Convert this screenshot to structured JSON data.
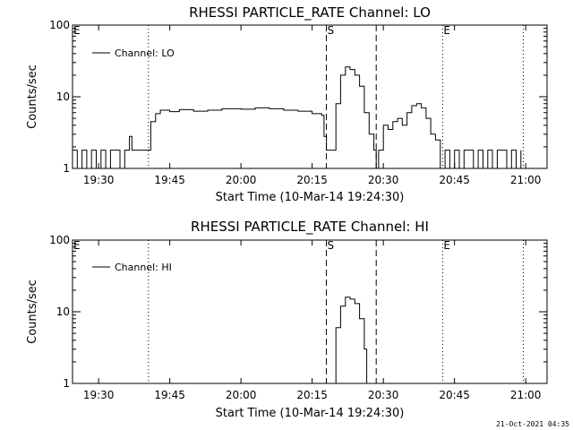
{
  "footer": {
    "stamp": "21-Oct-2021 04:35"
  },
  "chart_data": [
    {
      "type": "line",
      "title": "RHESSI PARTICLE_RATE Channel: LO",
      "xlabel": "Start Time (10-Mar-14 19:24:30)",
      "ylabel": "Counts/sec",
      "yscale": "log",
      "ylim": [
        1,
        100
      ],
      "xlim": [
        "19:24:30",
        "21:04:30"
      ],
      "yticks": [
        "1",
        "10",
        "100"
      ],
      "xticks": [
        "19:30",
        "19:45",
        "20:00",
        "20:15",
        "20:30",
        "20:45",
        "21:00"
      ],
      "legend": {
        "position": "top-left",
        "entries": [
          "Channel: LO"
        ]
      },
      "markers": [
        {
          "label": "E",
          "time": "19:24:30",
          "style": "none"
        },
        {
          "label": "",
          "time": "19:40:30",
          "style": "dotted"
        },
        {
          "label": "S",
          "time": "20:18:00",
          "style": "dashed"
        },
        {
          "label": "",
          "time": "20:28:30",
          "style": "dashed"
        },
        {
          "label": "E",
          "time": "20:42:30",
          "style": "dotted"
        },
        {
          "label": "",
          "time": "20:59:30",
          "style": "dotted"
        }
      ],
      "series": [
        {
          "name": "Channel: LO",
          "x": [
            "19:24:30",
            "19:25:30",
            "19:26:30",
            "19:27:30",
            "19:28:30",
            "19:29:30",
            "19:30:30",
            "19:31:30",
            "19:32:30",
            "19:33:30",
            "19:34:30",
            "19:35:30",
            "19:36:30",
            "19:37:00",
            "19:38:00",
            "19:39:00",
            "19:40:30",
            "19:41:00",
            "19:42:00",
            "19:43:00",
            "19:45:00",
            "19:47:00",
            "19:50:00",
            "19:53:00",
            "19:56:00",
            "20:00:00",
            "20:03:00",
            "20:06:00",
            "20:09:00",
            "20:12:00",
            "20:15:00",
            "20:17:00",
            "20:17:30",
            "20:18:00",
            "20:19:00",
            "20:20:00",
            "20:21:00",
            "20:22:00",
            "20:23:00",
            "20:24:00",
            "20:25:00",
            "20:26:00",
            "20:27:00",
            "20:28:00",
            "20:28:30",
            "20:29:00",
            "20:30:00",
            "20:31:00",
            "20:32:00",
            "20:33:00",
            "20:34:00",
            "20:35:00",
            "20:36:00",
            "20:37:00",
            "20:38:00",
            "20:39:00",
            "20:40:00",
            "20:41:00",
            "20:42:00",
            "20:43:00",
            "20:44:00",
            "20:45:00",
            "20:46:00",
            "20:47:00",
            "20:48:00",
            "20:49:00",
            "20:50:00",
            "20:51:00",
            "20:52:00",
            "20:53:00",
            "20:54:00",
            "20:55:00",
            "20:56:00",
            "20:57:00",
            "20:58:00",
            "20:59:00"
          ],
          "values": [
            1.8,
            1.0,
            1.8,
            1.0,
            1.8,
            1.0,
            1.8,
            1.0,
            1.8,
            1.8,
            1.0,
            1.8,
            2.8,
            1.8,
            1.8,
            1.8,
            1.8,
            4.5,
            5.8,
            6.5,
            6.2,
            6.6,
            6.3,
            6.5,
            6.8,
            6.7,
            7.0,
            6.8,
            6.5,
            6.3,
            5.8,
            5.5,
            2.8,
            1.8,
            1.8,
            8.0,
            20.0,
            26.0,
            24.0,
            20.0,
            14.0,
            6.0,
            3.0,
            1.8,
            1.0,
            1.8,
            4.0,
            3.5,
            4.5,
            5.0,
            4.0,
            6.0,
            7.5,
            8.0,
            7.0,
            5.0,
            3.0,
            2.5,
            1.0,
            1.8,
            1.0,
            1.8,
            1.0,
            1.8,
            1.8,
            1.0,
            1.8,
            1.0,
            1.8,
            1.0,
            1.8,
            1.8,
            1.0,
            1.8,
            1.0,
            1.8
          ]
        }
      ]
    },
    {
      "type": "line",
      "title": "RHESSI PARTICLE_RATE Channel: HI",
      "xlabel": "Start Time (10-Mar-14 19:24:30)",
      "ylabel": "Counts/sec",
      "yscale": "log",
      "ylim": [
        1,
        100
      ],
      "xlim": [
        "19:24:30",
        "21:04:30"
      ],
      "yticks": [
        "1",
        "10",
        "100"
      ],
      "xticks": [
        "19:30",
        "19:45",
        "20:00",
        "20:15",
        "20:30",
        "20:45",
        "21:00"
      ],
      "legend": {
        "position": "top-left",
        "entries": [
          "Channel: HI"
        ]
      },
      "markers": [
        {
          "label": "E",
          "time": "19:24:30",
          "style": "none"
        },
        {
          "label": "",
          "time": "19:40:30",
          "style": "dotted"
        },
        {
          "label": "S",
          "time": "20:18:00",
          "style": "dashed"
        },
        {
          "label": "",
          "time": "20:28:30",
          "style": "dashed"
        },
        {
          "label": "E",
          "time": "20:42:30",
          "style": "dotted"
        },
        {
          "label": "",
          "time": "20:59:30",
          "style": "dotted"
        }
      ],
      "series": [
        {
          "name": "Channel: HI",
          "x": [
            "20:19:00",
            "20:20:00",
            "20:21:00",
            "20:22:00",
            "20:23:00",
            "20:24:00",
            "20:25:00",
            "20:26:00",
            "20:26:30"
          ],
          "values": [
            1.0,
            6.0,
            12.0,
            16.0,
            15.0,
            13.0,
            8.0,
            3.0,
            1.0
          ]
        }
      ]
    }
  ]
}
